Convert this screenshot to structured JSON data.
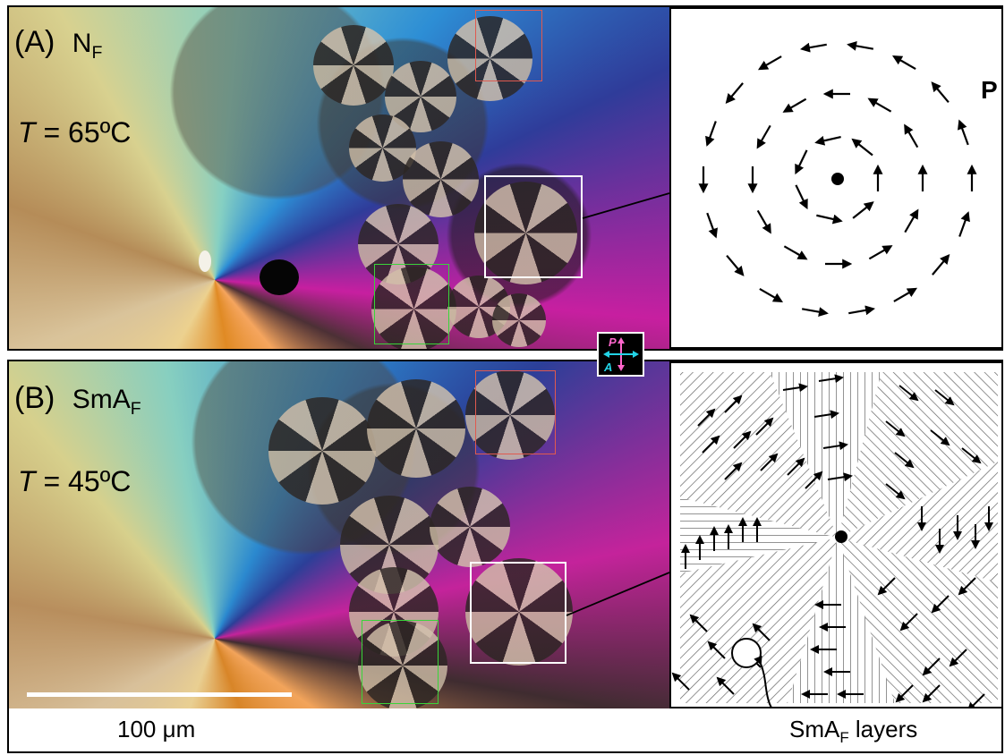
{
  "panel_a": {
    "letter": "(A)",
    "phase": "N",
    "phase_sub": "F",
    "temp_symbol": "T",
    "temp_value": " = 65ºC"
  },
  "panel_b": {
    "letter": "(B)",
    "phase": "SmA",
    "phase_sub": "F",
    "temp_symbol": "T",
    "temp_value": " = 45ºC"
  },
  "scale_label": "100 μm",
  "polarizer_label": "P",
  "analyzer_label": "A",
  "diagram_a_label": "P",
  "layers_label_main": "SmA",
  "layers_label_sub": "F",
  "layers_label_rest": " layers",
  "colors": {
    "red_box": "#e05a4f",
    "white_box": "#ffffff",
    "green_box": "#3ad43a",
    "polarizer": "#ff66cc",
    "analyzer": "#22d3e6"
  }
}
